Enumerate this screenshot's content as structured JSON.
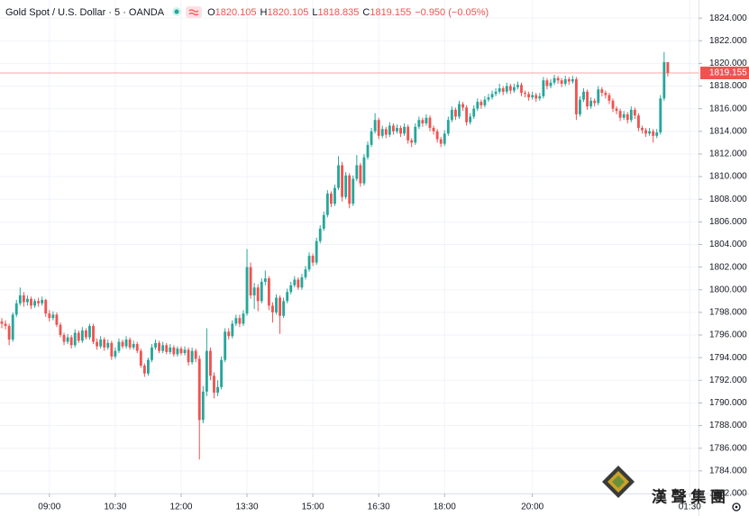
{
  "chart_data": {
    "type": "candlestick",
    "title": "Gold Spot / U.S. Dollar · 5 · OANDA",
    "legend": {
      "o_key": "O",
      "o": "1820.105",
      "h_key": "H",
      "h": "1820.105",
      "l_key": "L",
      "l": "1818.835",
      "c_key": "C",
      "c": "1819.155",
      "change": "−0.950 (−0.05%)"
    },
    "up_color": "#26a69a",
    "down_color": "#ef5350",
    "grid": true,
    "watermark": "漢 聲 集 團",
    "ylim": [
      1782,
      1825.6
    ],
    "xlim": [
      -0.5,
      190.4
    ],
    "yticks": [
      {
        "value": 1782,
        "label": "1782.000"
      },
      {
        "value": 1784,
        "label": "1784.000"
      },
      {
        "value": 1786,
        "label": "1786.000"
      },
      {
        "value": 1788,
        "label": "1788.000"
      },
      {
        "value": 1790,
        "label": "1790.000"
      },
      {
        "value": 1792,
        "label": "1792.000"
      },
      {
        "value": 1794,
        "label": "1794.000"
      },
      {
        "value": 1796,
        "label": "1796.000"
      },
      {
        "value": 1798,
        "label": "1798.000"
      },
      {
        "value": 1800,
        "label": "1800.000"
      },
      {
        "value": 1802,
        "label": "1802.000"
      },
      {
        "value": 1804,
        "label": "1804.000"
      },
      {
        "value": 1806,
        "label": "1806.000"
      },
      {
        "value": 1808,
        "label": "1808.000"
      },
      {
        "value": 1810,
        "label": "1810.000"
      },
      {
        "value": 1812,
        "label": "1812.000"
      },
      {
        "value": 1814,
        "label": "1814.000"
      },
      {
        "value": 1816,
        "label": "1816.000"
      },
      {
        "value": 1818,
        "label": "1818.000"
      },
      {
        "value": 1820,
        "label": "1820.000"
      },
      {
        "value": 1822,
        "label": "1822.000"
      },
      {
        "value": 1824,
        "label": "1824.000"
      }
    ],
    "xticks": [
      {
        "value": 13,
        "label": "09:00"
      },
      {
        "value": 31,
        "label": "10:30"
      },
      {
        "value": 49,
        "label": "12:00"
      },
      {
        "value": 67,
        "label": "13:30"
      },
      {
        "value": 85,
        "label": "15:00"
      },
      {
        "value": 103,
        "label": "16:30"
      },
      {
        "value": 121,
        "label": "18:00"
      },
      {
        "value": 145,
        "label": "20:00"
      },
      {
        "value": 188,
        "label": "01:30"
      }
    ],
    "candles": [
      [
        1797.2,
        1797.5,
        1796.6,
        1797.0
      ],
      [
        1797.0,
        1797.3,
        1796.5,
        1796.8
      ],
      [
        1796.8,
        1797.0,
        1795.1,
        1795.6
      ],
      [
        1795.6,
        1798.0,
        1795.4,
        1797.8
      ],
      [
        1797.8,
        1799.1,
        1797.6,
        1798.8
      ],
      [
        1798.8,
        1800.2,
        1798.6,
        1799.5
      ],
      [
        1799.5,
        1799.8,
        1798.5,
        1798.9
      ],
      [
        1798.9,
        1799.5,
        1798.6,
        1799.2
      ],
      [
        1799.2,
        1799.4,
        1798.3,
        1798.6
      ],
      [
        1798.6,
        1799.2,
        1798.4,
        1799.0
      ],
      [
        1799.0,
        1799.3,
        1798.5,
        1798.8
      ],
      [
        1798.8,
        1799.4,
        1798.6,
        1799.1
      ],
      [
        1799.1,
        1799.2,
        1797.6,
        1797.9
      ],
      [
        1797.9,
        1798.2,
        1797.2,
        1797.5
      ],
      [
        1797.5,
        1798.1,
        1797.3,
        1797.8
      ],
      [
        1797.8,
        1798.0,
        1796.7,
        1796.9
      ],
      [
        1796.9,
        1797.1,
        1795.8,
        1796.0
      ],
      [
        1796.0,
        1796.2,
        1795.1,
        1795.4
      ],
      [
        1795.4,
        1796.1,
        1795.2,
        1795.8
      ],
      [
        1795.8,
        1796.0,
        1794.8,
        1795.1
      ],
      [
        1795.1,
        1796.5,
        1794.9,
        1796.2
      ],
      [
        1796.2,
        1796.4,
        1795.3,
        1795.5
      ],
      [
        1795.5,
        1796.7,
        1795.3,
        1796.4
      ],
      [
        1796.4,
        1796.6,
        1795.6,
        1795.8
      ],
      [
        1795.8,
        1797.0,
        1795.6,
        1796.8
      ],
      [
        1796.8,
        1797.0,
        1795.2,
        1795.4
      ],
      [
        1795.4,
        1795.7,
        1794.7,
        1795.0
      ],
      [
        1795.0,
        1795.9,
        1794.8,
        1795.6
      ],
      [
        1795.6,
        1795.8,
        1794.6,
        1794.9
      ],
      [
        1794.9,
        1795.6,
        1794.7,
        1795.3
      ],
      [
        1795.3,
        1795.5,
        1793.8,
        1794.1
      ],
      [
        1794.1,
        1794.9,
        1793.9,
        1794.6
      ],
      [
        1794.6,
        1795.7,
        1794.4,
        1795.4
      ],
      [
        1795.4,
        1795.6,
        1794.8,
        1795.0
      ],
      [
        1795.0,
        1795.9,
        1794.8,
        1795.6
      ],
      [
        1795.6,
        1795.8,
        1794.7,
        1794.9
      ],
      [
        1794.9,
        1795.5,
        1794.7,
        1795.2
      ],
      [
        1795.2,
        1795.4,
        1794.4,
        1794.6
      ],
      [
        1794.6,
        1794.8,
        1793.1,
        1793.3
      ],
      [
        1793.3,
        1793.5,
        1792.3,
        1792.6
      ],
      [
        1792.6,
        1794.0,
        1792.4,
        1793.8
      ],
      [
        1793.8,
        1795.2,
        1793.6,
        1794.9
      ],
      [
        1794.9,
        1795.6,
        1794.7,
        1795.3
      ],
      [
        1795.3,
        1795.5,
        1794.4,
        1794.6
      ],
      [
        1794.6,
        1795.4,
        1794.4,
        1795.1
      ],
      [
        1795.1,
        1795.3,
        1794.3,
        1794.5
      ],
      [
        1794.5,
        1795.2,
        1794.3,
        1794.9
      ],
      [
        1794.9,
        1795.1,
        1794.1,
        1794.3
      ],
      [
        1794.3,
        1795.0,
        1794.1,
        1794.8
      ],
      [
        1794.8,
        1795.0,
        1794.2,
        1794.4
      ],
      [
        1794.4,
        1795.0,
        1794.2,
        1794.7
      ],
      [
        1794.7,
        1794.9,
        1793.3,
        1793.6
      ],
      [
        1793.6,
        1794.9,
        1793.4,
        1794.6
      ],
      [
        1794.6,
        1794.8,
        1793.6,
        1793.9
      ],
      [
        1793.9,
        1794.2,
        1785.0,
        1788.5
      ],
      [
        1788.5,
        1791.5,
        1788.2,
        1791.0
      ],
      [
        1791.0,
        1796.6,
        1790.6,
        1794.6
      ],
      [
        1794.6,
        1794.9,
        1792.0,
        1792.4
      ],
      [
        1792.4,
        1792.7,
        1790.4,
        1790.9
      ],
      [
        1790.9,
        1792.0,
        1790.6,
        1791.4
      ],
      [
        1791.4,
        1794.1,
        1791.2,
        1793.8
      ],
      [
        1793.8,
        1796.6,
        1793.6,
        1796.3
      ],
      [
        1796.3,
        1796.6,
        1795.6,
        1795.9
      ],
      [
        1795.9,
        1797.3,
        1795.7,
        1797.0
      ],
      [
        1797.0,
        1797.8,
        1796.8,
        1797.5
      ],
      [
        1797.5,
        1797.8,
        1796.7,
        1797.0
      ],
      [
        1797.0,
        1798.2,
        1796.8,
        1797.9
      ],
      [
        1797.9,
        1803.6,
        1797.7,
        1802.0
      ],
      [
        1802.0,
        1802.4,
        1799.2,
        1799.5
      ],
      [
        1799.5,
        1800.6,
        1798.3,
        1800.2
      ],
      [
        1800.2,
        1800.5,
        1798.1,
        1799.0
      ],
      [
        1799.0,
        1801.0,
        1798.8,
        1800.7
      ],
      [
        1800.7,
        1801.7,
        1800.4,
        1801.0
      ],
      [
        1801.0,
        1801.2,
        1798.2,
        1798.6
      ],
      [
        1798.6,
        1798.9,
        1797.1,
        1798.0
      ],
      [
        1798.0,
        1799.6,
        1797.8,
        1799.3
      ],
      [
        1799.3,
        1799.5,
        1796.1,
        1797.7
      ],
      [
        1797.7,
        1799.3,
        1797.5,
        1799.0
      ],
      [
        1799.0,
        1800.1,
        1798.8,
        1799.8
      ],
      [
        1799.8,
        1800.7,
        1799.6,
        1800.4
      ],
      [
        1800.4,
        1801.2,
        1800.2,
        1800.9
      ],
      [
        1800.9,
        1801.1,
        1800.0,
        1800.2
      ],
      [
        1800.2,
        1801.4,
        1800.0,
        1801.1
      ],
      [
        1801.1,
        1802.1,
        1800.9,
        1801.8
      ],
      [
        1801.8,
        1803.3,
        1801.6,
        1803.0
      ],
      [
        1803.0,
        1803.2,
        1802.1,
        1802.4
      ],
      [
        1802.4,
        1804.6,
        1802.2,
        1804.3
      ],
      [
        1804.3,
        1805.7,
        1804.1,
        1805.4
      ],
      [
        1805.4,
        1806.9,
        1805.2,
        1806.6
      ],
      [
        1806.6,
        1808.8,
        1806.4,
        1808.5
      ],
      [
        1808.5,
        1808.7,
        1807.3,
        1807.6
      ],
      [
        1807.6,
        1809.3,
        1807.4,
        1809.0
      ],
      [
        1809.0,
        1811.8,
        1808.8,
        1811.0
      ],
      [
        1811.0,
        1811.3,
        1807.8,
        1808.2
      ],
      [
        1808.2,
        1810.4,
        1808.0,
        1810.1
      ],
      [
        1810.1,
        1810.3,
        1807.2,
        1807.6
      ],
      [
        1807.6,
        1810.1,
        1807.4,
        1809.8
      ],
      [
        1809.8,
        1811.9,
        1809.6,
        1811.0
      ],
      [
        1811.0,
        1811.2,
        1809.1,
        1809.4
      ],
      [
        1809.4,
        1812.0,
        1809.2,
        1811.7
      ],
      [
        1811.7,
        1813.1,
        1811.5,
        1812.8
      ],
      [
        1812.8,
        1814.3,
        1812.6,
        1814.0
      ],
      [
        1814.0,
        1815.6,
        1813.8,
        1815.0
      ],
      [
        1815.0,
        1815.2,
        1813.3,
        1813.6
      ],
      [
        1813.6,
        1814.5,
        1813.4,
        1814.2
      ],
      [
        1814.2,
        1814.4,
        1813.4,
        1813.7
      ],
      [
        1813.7,
        1814.8,
        1813.5,
        1814.5
      ],
      [
        1814.5,
        1814.7,
        1813.7,
        1814.0
      ],
      [
        1814.0,
        1814.6,
        1813.8,
        1814.3
      ],
      [
        1814.3,
        1814.5,
        1813.5,
        1813.8
      ],
      [
        1813.8,
        1814.7,
        1813.6,
        1814.4
      ],
      [
        1814.4,
        1814.6,
        1812.9,
        1813.2
      ],
      [
        1813.2,
        1813.4,
        1812.6,
        1813.0
      ],
      [
        1813.0,
        1814.7,
        1812.8,
        1814.4
      ],
      [
        1814.4,
        1815.3,
        1814.2,
        1815.0
      ],
      [
        1815.0,
        1815.2,
        1814.4,
        1814.7
      ],
      [
        1814.7,
        1815.5,
        1814.5,
        1815.2
      ],
      [
        1815.2,
        1815.4,
        1814.0,
        1814.3
      ],
      [
        1814.3,
        1814.5,
        1813.7,
        1814.0
      ],
      [
        1814.0,
        1814.2,
        1813.0,
        1813.3
      ],
      [
        1813.3,
        1813.5,
        1812.6,
        1812.9
      ],
      [
        1812.9,
        1814.1,
        1812.7,
        1813.8
      ],
      [
        1813.8,
        1815.3,
        1813.6,
        1815.0
      ],
      [
        1815.0,
        1816.2,
        1814.8,
        1815.9
      ],
      [
        1815.9,
        1816.1,
        1815.0,
        1815.3
      ],
      [
        1815.3,
        1816.7,
        1815.1,
        1816.4
      ],
      [
        1816.4,
        1816.6,
        1815.8,
        1816.1
      ],
      [
        1816.1,
        1816.3,
        1814.5,
        1814.8
      ],
      [
        1814.8,
        1815.6,
        1814.6,
        1815.3
      ],
      [
        1815.3,
        1816.3,
        1815.1,
        1816.0
      ],
      [
        1816.0,
        1816.9,
        1815.8,
        1816.6
      ],
      [
        1816.6,
        1816.8,
        1816.0,
        1816.3
      ],
      [
        1816.3,
        1817.1,
        1816.1,
        1816.8
      ],
      [
        1816.8,
        1817.3,
        1816.6,
        1817.0
      ],
      [
        1817.0,
        1817.6,
        1816.8,
        1817.3
      ],
      [
        1817.3,
        1817.8,
        1817.1,
        1817.5
      ],
      [
        1817.5,
        1818.2,
        1817.3,
        1817.8
      ],
      [
        1817.8,
        1818.0,
        1817.2,
        1817.5
      ],
      [
        1817.5,
        1818.3,
        1817.3,
        1818.0
      ],
      [
        1818.0,
        1818.2,
        1817.3,
        1817.6
      ],
      [
        1817.6,
        1818.2,
        1817.4,
        1817.9
      ],
      [
        1817.9,
        1818.4,
        1817.7,
        1818.1
      ],
      [
        1818.1,
        1818.3,
        1817.1,
        1817.4
      ],
      [
        1817.4,
        1817.6,
        1817.0,
        1817.3
      ],
      [
        1817.3,
        1817.5,
        1816.7,
        1817.0
      ],
      [
        1817.0,
        1817.5,
        1816.8,
        1817.2
      ],
      [
        1817.2,
        1817.4,
        1816.6,
        1816.9
      ],
      [
        1816.9,
        1817.4,
        1816.7,
        1817.1
      ],
      [
        1817.1,
        1818.8,
        1816.9,
        1818.5
      ],
      [
        1818.5,
        1818.7,
        1817.7,
        1818.0
      ],
      [
        1818.0,
        1818.6,
        1817.8,
        1818.3
      ],
      [
        1818.3,
        1819.0,
        1818.1,
        1818.7
      ],
      [
        1818.7,
        1818.9,
        1818.2,
        1818.5
      ],
      [
        1818.5,
        1818.7,
        1817.9,
        1818.2
      ],
      [
        1818.2,
        1818.9,
        1818.0,
        1818.6
      ],
      [
        1818.6,
        1818.8,
        1818.1,
        1818.4
      ],
      [
        1818.4,
        1818.9,
        1818.2,
        1818.6
      ],
      [
        1818.6,
        1818.8,
        1815.0,
        1815.5
      ],
      [
        1815.5,
        1817.1,
        1815.3,
        1816.8
      ],
      [
        1816.8,
        1817.8,
        1816.6,
        1817.5
      ],
      [
        1817.5,
        1817.7,
        1815.9,
        1816.2
      ],
      [
        1816.2,
        1817.0,
        1816.0,
        1816.7
      ],
      [
        1816.7,
        1816.9,
        1816.2,
        1816.5
      ],
      [
        1816.5,
        1818.0,
        1816.3,
        1817.7
      ],
      [
        1817.7,
        1817.9,
        1817.1,
        1817.4
      ],
      [
        1817.4,
        1817.6,
        1816.9,
        1817.2
      ],
      [
        1817.2,
        1817.4,
        1816.4,
        1816.7
      ],
      [
        1816.7,
        1816.9,
        1815.7,
        1816.0
      ],
      [
        1816.0,
        1816.2,
        1815.5,
        1815.8
      ],
      [
        1815.8,
        1816.0,
        1814.9,
        1815.2
      ],
      [
        1815.2,
        1815.8,
        1815.0,
        1815.5
      ],
      [
        1815.5,
        1815.7,
        1814.7,
        1815.0
      ],
      [
        1815.0,
        1816.2,
        1814.8,
        1815.9
      ],
      [
        1815.9,
        1816.1,
        1815.1,
        1815.4
      ],
      [
        1815.4,
        1815.6,
        1814.0,
        1814.3
      ],
      [
        1814.3,
        1814.5,
        1813.8,
        1814.1
      ],
      [
        1814.1,
        1814.3,
        1813.5,
        1813.8
      ],
      [
        1813.8,
        1814.3,
        1813.6,
        1814.0
      ],
      [
        1814.0,
        1814.2,
        1813.0,
        1813.6
      ],
      [
        1813.6,
        1814.2,
        1813.4,
        1813.9
      ],
      [
        1813.9,
        1817.2,
        1813.7,
        1816.9
      ],
      [
        1816.9,
        1821.0,
        1816.7,
        1820.105
      ],
      [
        1820.105,
        1820.105,
        1818.835,
        1819.155
      ]
    ]
  }
}
